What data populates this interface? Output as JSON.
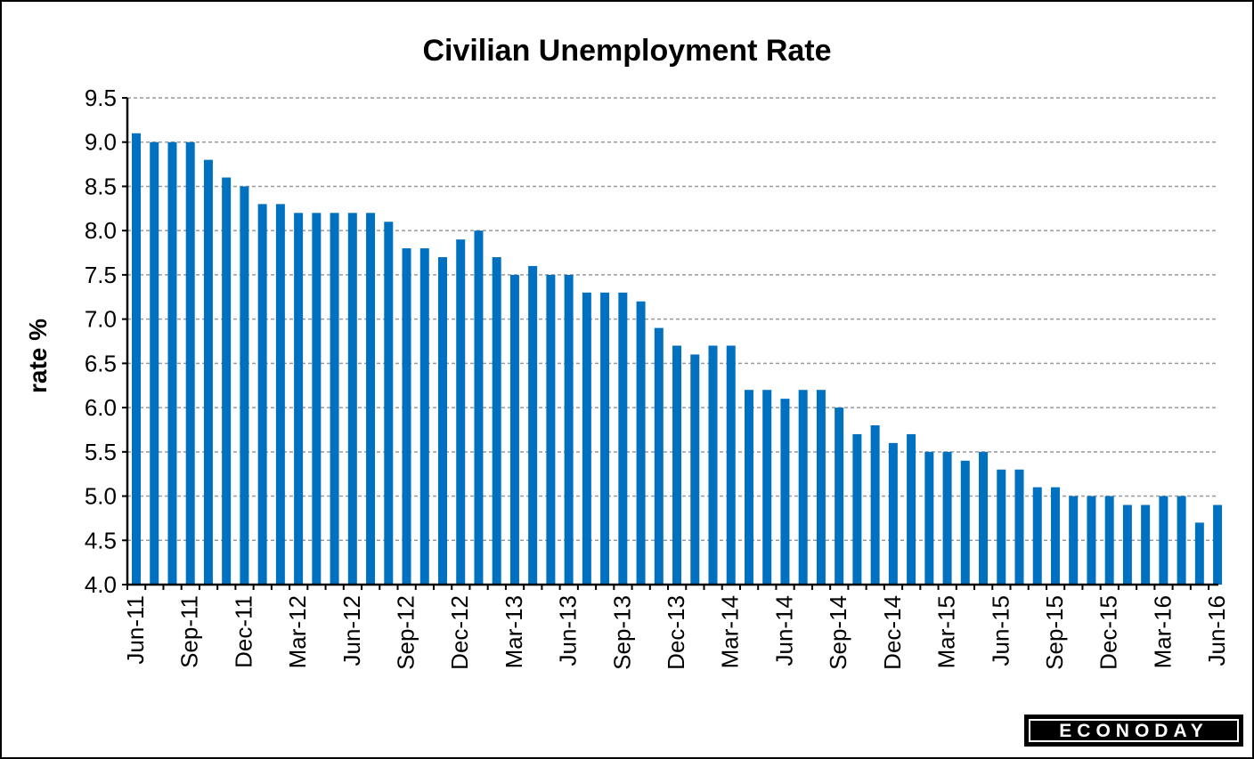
{
  "chart_data": {
    "type": "bar",
    "title": "Civilian Unemployment Rate",
    "xlabel": "",
    "ylabel": "rate %",
    "ylim": [
      4.0,
      9.5
    ],
    "yticks": [
      "4.0",
      "4.5",
      "5.0",
      "5.5",
      "6.0",
      "6.5",
      "7.0",
      "7.5",
      "8.0",
      "8.5",
      "9.0",
      "9.5"
    ],
    "grid": true,
    "bar_color": "#0070C0",
    "categories": [
      "Jun-11",
      "Jul-11",
      "Aug-11",
      "Sep-11",
      "Oct-11",
      "Nov-11",
      "Dec-11",
      "Jan-12",
      "Feb-12",
      "Mar-12",
      "Apr-12",
      "May-12",
      "Jun-12",
      "Jul-12",
      "Aug-12",
      "Sep-12",
      "Oct-12",
      "Nov-12",
      "Dec-12",
      "Jan-13",
      "Feb-13",
      "Mar-13",
      "Apr-13",
      "May-13",
      "Jun-13",
      "Jul-13",
      "Aug-13",
      "Sep-13",
      "Oct-13",
      "Nov-13",
      "Dec-13",
      "Jan-14",
      "Feb-14",
      "Mar-14",
      "Apr-14",
      "May-14",
      "Jun-14",
      "Jul-14",
      "Aug-14",
      "Sep-14",
      "Oct-14",
      "Nov-14",
      "Dec-14",
      "Jan-15",
      "Feb-15",
      "Mar-15",
      "Apr-15",
      "May-15",
      "Jun-15",
      "Jul-15",
      "Aug-15",
      "Sep-15",
      "Oct-15",
      "Nov-15",
      "Dec-15",
      "Jan-16",
      "Feb-16",
      "Mar-16",
      "Apr-16",
      "May-16",
      "Jun-16"
    ],
    "tick_labels": [
      "Jun-11",
      "Sep-11",
      "Dec-11",
      "Mar-12",
      "Jun-12",
      "Sep-12",
      "Dec-12",
      "Mar-13",
      "Jun-13",
      "Sep-13",
      "Dec-13",
      "Mar-14",
      "Jun-14",
      "Sep-14",
      "Dec-14",
      "Mar-15",
      "Jun-15",
      "Sep-15",
      "Dec-15",
      "Mar-16",
      "Jun-16"
    ],
    "values": [
      9.1,
      9.0,
      9.0,
      9.0,
      8.8,
      8.6,
      8.5,
      8.3,
      8.3,
      8.2,
      8.2,
      8.2,
      8.2,
      8.2,
      8.1,
      7.8,
      7.8,
      7.7,
      7.9,
      8.0,
      7.7,
      7.5,
      7.6,
      7.5,
      7.5,
      7.3,
      7.3,
      7.3,
      7.2,
      6.9,
      6.7,
      6.6,
      6.7,
      6.7,
      6.2,
      6.2,
      6.1,
      6.2,
      6.2,
      6.0,
      5.7,
      5.8,
      5.6,
      5.7,
      5.5,
      5.5,
      5.4,
      5.5,
      5.3,
      5.3,
      5.1,
      5.1,
      5.0,
      5.0,
      5.0,
      4.9,
      4.9,
      5.0,
      5.0,
      4.7,
      4.9
    ]
  },
  "brand": {
    "text": "ECONODAY"
  }
}
